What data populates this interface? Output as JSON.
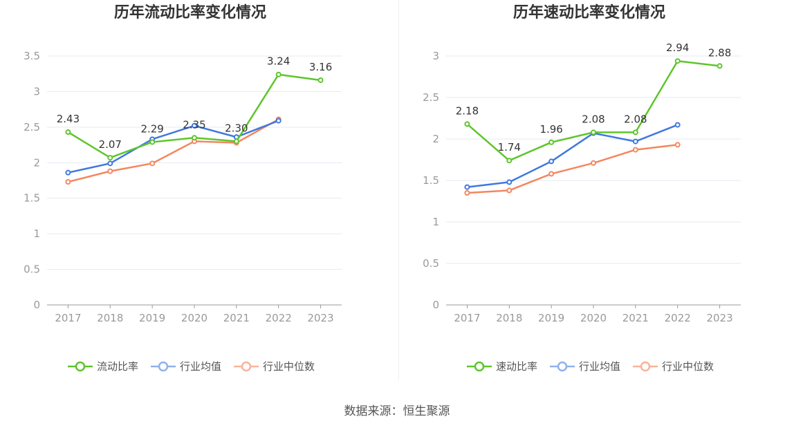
{
  "colors": {
    "primary": "#5ec52b",
    "industry_avg": "#3f78e0",
    "industry_median": "#f4865f",
    "legend_avg": "#8fb1ec",
    "legend_median": "#f8b39b"
  },
  "source_text": "数据来源：恒生聚源",
  "chart_data": [
    {
      "type": "line",
      "title": "历年流动比率变化情况",
      "categories": [
        "2017",
        "2018",
        "2019",
        "2020",
        "2021",
        "2022",
        "2023"
      ],
      "ylim": [
        0,
        3.5
      ],
      "yticks": [
        0,
        0.5,
        1,
        1.5,
        2,
        2.5,
        3,
        3.5
      ],
      "ytick_labels": [
        "0",
        "0.5",
        "1",
        "1.5",
        "2",
        "2.5",
        "3",
        "3.5"
      ],
      "legend_position": "bottom",
      "series": [
        {
          "name": "流动比率",
          "values": [
            2.43,
            2.07,
            2.29,
            2.35,
            2.3,
            3.24,
            3.16
          ],
          "labels": [
            "2.43",
            "2.07",
            "2.29",
            "2.35",
            "2.30",
            "3.24",
            "3.16"
          ]
        },
        {
          "name": "行业均值",
          "values": [
            1.86,
            1.99,
            2.33,
            2.52,
            2.36,
            2.59,
            null
          ]
        },
        {
          "name": "行业中位数",
          "values": [
            1.73,
            1.88,
            1.99,
            2.3,
            2.28,
            2.61,
            null
          ]
        }
      ]
    },
    {
      "type": "line",
      "title": "历年速动比率变化情况",
      "categories": [
        "2017",
        "2018",
        "2019",
        "2020",
        "2021",
        "2022",
        "2023"
      ],
      "ylim": [
        0,
        3
      ],
      "yticks": [
        0,
        0.5,
        1,
        1.5,
        2,
        2.5,
        3
      ],
      "ytick_labels": [
        "0",
        "0.5",
        "1",
        "1.5",
        "2",
        "2.5",
        "3"
      ],
      "legend_position": "bottom",
      "series": [
        {
          "name": "速动比率",
          "values": [
            2.18,
            1.74,
            1.96,
            2.08,
            2.08,
            2.94,
            2.88
          ],
          "labels": [
            "2.18",
            "1.74",
            "1.96",
            "2.08",
            "2.08",
            "2.94",
            "2.88"
          ]
        },
        {
          "name": "行业均值",
          "values": [
            1.42,
            1.48,
            1.73,
            2.07,
            1.97,
            2.17,
            null
          ]
        },
        {
          "name": "行业中位数",
          "values": [
            1.35,
            1.38,
            1.58,
            1.71,
            1.87,
            1.93,
            null
          ]
        }
      ]
    }
  ]
}
